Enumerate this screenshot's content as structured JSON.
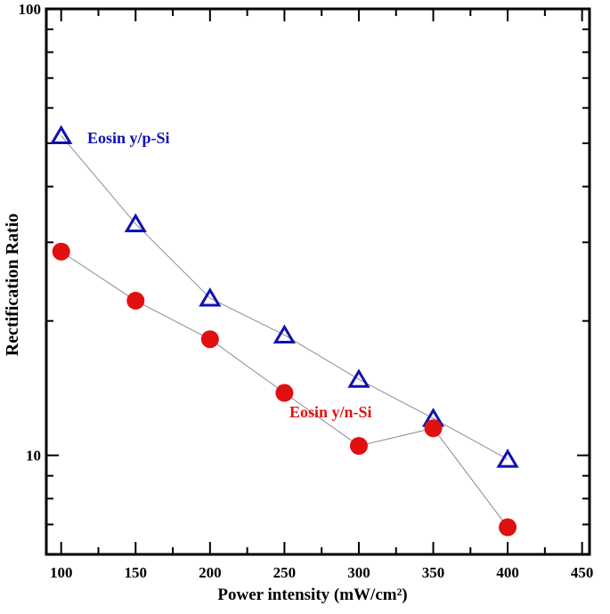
{
  "chart_data": {
    "type": "line",
    "title": "",
    "xlabel": "Power intensity (mW/cm²)",
    "ylabel": "Rectification Ratio",
    "xlim": [
      90,
      455
    ],
    "ylim": [
      6,
      100
    ],
    "y_scale": "log",
    "x_ticks": [
      100,
      150,
      200,
      250,
      300,
      350,
      400,
      450
    ],
    "y_tick_labels": [
      10,
      100
    ],
    "grid": false,
    "legend": "none",
    "series": [
      {
        "name": "Eosin y/p-Si",
        "marker": "open-triangle",
        "color": "#1010b0",
        "x": [
          100,
          150,
          200,
          250,
          300,
          350,
          400
        ],
        "y": [
          52,
          33,
          22.5,
          18.6,
          14.8,
          12.1,
          9.8
        ]
      },
      {
        "name": "Eosin y/n-Si",
        "marker": "filled-circle",
        "color": "#e01010",
        "x": [
          100,
          150,
          200,
          250,
          300,
          350,
          400
        ],
        "y": [
          28.6,
          22.2,
          18.2,
          13.8,
          10.5,
          11.5,
          6.9
        ]
      }
    ]
  }
}
